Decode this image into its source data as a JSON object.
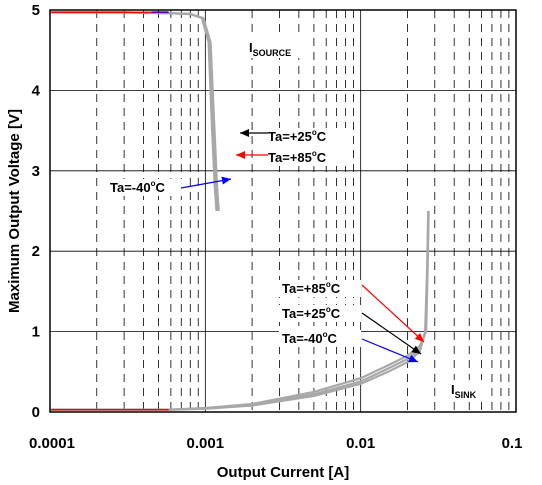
{
  "chart_data": {
    "type": "line",
    "title": "",
    "xlabel": "Output Current [A]",
    "ylabel": "Maximum Output Voltage [V]",
    "x_scale": "log",
    "xlim": [
      0.0001,
      0.1
    ],
    "ylim": [
      0,
      5
    ],
    "x_ticks": [
      "0.0001",
      "0.001",
      "0.01",
      "0.1"
    ],
    "y_ticks": [
      "0",
      "1",
      "2",
      "3",
      "4",
      "5"
    ],
    "grid": true,
    "series": [
      {
        "name": "Ta=-40°C (source)",
        "x": [
          0.0001,
          0.0003,
          0.0006,
          0.0008,
          0.00095,
          0.00105,
          0.0011,
          0.00115,
          0.00118
        ],
        "y": [
          4.97,
          4.97,
          4.96,
          4.95,
          4.9,
          4.6,
          3.6,
          2.8,
          2.5
        ]
      },
      {
        "name": "Ta=+25°C (source)",
        "x": [
          0.0001,
          0.0003,
          0.0006,
          0.0008,
          0.00096,
          0.00106,
          0.00112,
          0.00117,
          0.0012
        ],
        "y": [
          4.97,
          4.97,
          4.96,
          4.95,
          4.9,
          4.6,
          3.6,
          2.8,
          2.5
        ]
      },
      {
        "name": "Ta=+85°C (source)",
        "x": [
          0.0001,
          0.0003,
          0.0006,
          0.0008,
          0.00097,
          0.00108,
          0.00114,
          0.00119,
          0.00122
        ],
        "y": [
          4.97,
          4.97,
          4.96,
          4.95,
          4.9,
          4.6,
          3.6,
          2.8,
          2.5
        ]
      },
      {
        "name": "Ta=-40°C (sink)",
        "x": [
          0.0001,
          0.0006,
          0.001,
          0.002,
          0.005,
          0.01,
          0.015,
          0.02,
          0.024,
          0.026,
          0.0268,
          0.0272
        ],
        "y": [
          0.03,
          0.03,
          0.04,
          0.08,
          0.2,
          0.35,
          0.5,
          0.62,
          0.75,
          1.0,
          1.8,
          2.5
        ]
      },
      {
        "name": "Ta=+25°C (sink)",
        "x": [
          0.0001,
          0.0006,
          0.001,
          0.002,
          0.005,
          0.01,
          0.015,
          0.02,
          0.024,
          0.0262,
          0.0269,
          0.0273
        ],
        "y": [
          0.03,
          0.03,
          0.045,
          0.09,
          0.22,
          0.38,
          0.54,
          0.66,
          0.78,
          1.0,
          1.8,
          2.5
        ]
      },
      {
        "name": "Ta=+85°C (sink)",
        "x": [
          0.0001,
          0.0006,
          0.001,
          0.002,
          0.005,
          0.01,
          0.015,
          0.02,
          0.024,
          0.0264,
          0.027,
          0.0274
        ],
        "y": [
          0.03,
          0.03,
          0.05,
          0.1,
          0.25,
          0.42,
          0.58,
          0.7,
          0.82,
          1.0,
          1.8,
          2.5
        ]
      }
    ],
    "labels": {
      "source": {
        "main": "I",
        "sub": "SOURCE"
      },
      "sink": {
        "main": "I",
        "sub": "SINK"
      }
    },
    "annotations": [
      {
        "prefix": "Ta=+25",
        "sup": "o",
        "suffix": "C",
        "color": "#000000"
      },
      {
        "prefix": "Ta=+85",
        "sup": "o",
        "suffix": "C",
        "color": "#ff0000"
      },
      {
        "prefix": "Ta=-40",
        "sup": "o",
        "suffix": "C",
        "color": "#0000ff"
      },
      {
        "prefix": "Ta=+85",
        "sup": "o",
        "suffix": "C",
        "color": "#ff0000"
      },
      {
        "prefix": "Ta=+25",
        "sup": "o",
        "suffix": "C",
        "color": "#000000"
      },
      {
        "prefix": "Ta=-40",
        "sup": "o",
        "suffix": "C",
        "color": "#0000ff"
      }
    ],
    "colors": {
      "curve": "#a8a8a8",
      "red": "#ff0000",
      "blue": "#0000ff",
      "black": "#000000"
    }
  }
}
